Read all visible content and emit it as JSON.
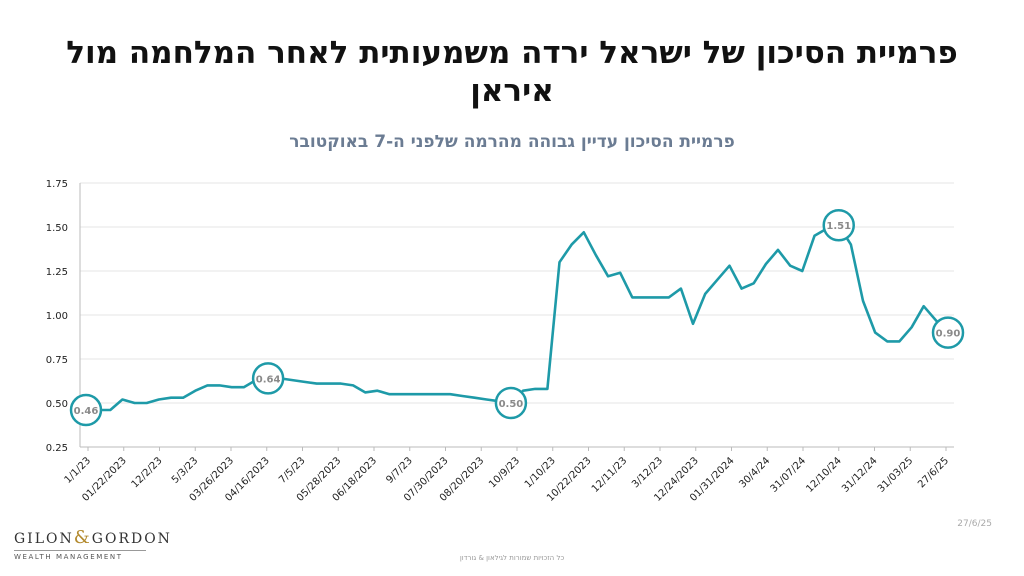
{
  "title": "פרמיית הסיכון של ישראל ירדה משמעותית לאחר המלחמה מול איראן",
  "subtitle": "פרמיית הסיכון עדיין גבוהה מהרמה שלפני ה-7 באוקטובר",
  "date_stamp": "27/6/25",
  "copyright": "כל הזכויות שמורות לגילאון & גורדון",
  "logo": {
    "left": "GILON",
    "amp": "&",
    "right": "GORDON",
    "sub": "WEALTH MANAGEMENT"
  },
  "colors": {
    "line": "#1e9aa8",
    "grid": "#e6e6e6",
    "axis_text": "#222222",
    "label_text": "#8a8a8a"
  },
  "chart_data": {
    "type": "line",
    "title": "",
    "xlabel": "",
    "ylabel": "",
    "ylim": [
      0.25,
      1.75
    ],
    "yticks": [
      "0.25",
      "0.50",
      "0.75",
      "1.00",
      "1.25",
      "1.50",
      "1.75"
    ],
    "grid": "horizontal",
    "x_tick_labels": [
      "1/1/23",
      "01/22/2023",
      "12/2/23",
      "5/3/23",
      "03/26/2023",
      "04/16/2023",
      "7/5/23",
      "05/28/2023",
      "06/18/2023",
      "9/7/23",
      "07/30/2023",
      "08/20/2023",
      "10/9/23",
      "1/10/23",
      "10/22/2023",
      "12/11/23",
      "3/12/23",
      "12/24/2023",
      "01/31/2024",
      "30/4/24",
      "31/07/24",
      "12/10/24",
      "31/12/24",
      "31/03/25",
      "27/6/25"
    ],
    "series": [
      {
        "values": [
          0.46,
          0.46,
          0.46,
          0.52,
          0.5,
          0.5,
          0.52,
          0.53,
          0.53,
          0.57,
          0.6,
          0.6,
          0.59,
          0.59,
          0.63,
          0.64,
          0.64,
          0.63,
          0.62,
          0.61,
          0.61,
          0.61,
          0.6,
          0.56,
          0.57,
          0.55,
          0.55,
          0.55,
          0.55,
          0.55,
          0.55,
          0.54,
          0.53,
          0.52,
          0.51,
          0.5,
          0.57,
          0.58,
          0.58,
          1.3,
          1.4,
          1.47,
          1.34,
          1.22,
          1.24,
          1.1,
          1.1,
          1.1,
          1.1,
          1.15,
          0.95,
          1.12,
          1.2,
          1.28,
          1.15,
          1.18,
          1.29,
          1.37,
          1.28,
          1.25,
          1.45,
          1.49,
          1.51,
          1.4,
          1.08,
          0.9,
          0.85,
          0.85,
          0.93,
          1.05,
          0.97,
          0.9
        ]
      }
    ],
    "annotations": [
      {
        "index": 0,
        "label": "0.46"
      },
      {
        "index": 15,
        "label": "0.64"
      },
      {
        "index": 35,
        "label": "0.50"
      },
      {
        "index": 62,
        "label": "1.51"
      },
      {
        "index": 71,
        "label": "0.90"
      }
    ]
  }
}
